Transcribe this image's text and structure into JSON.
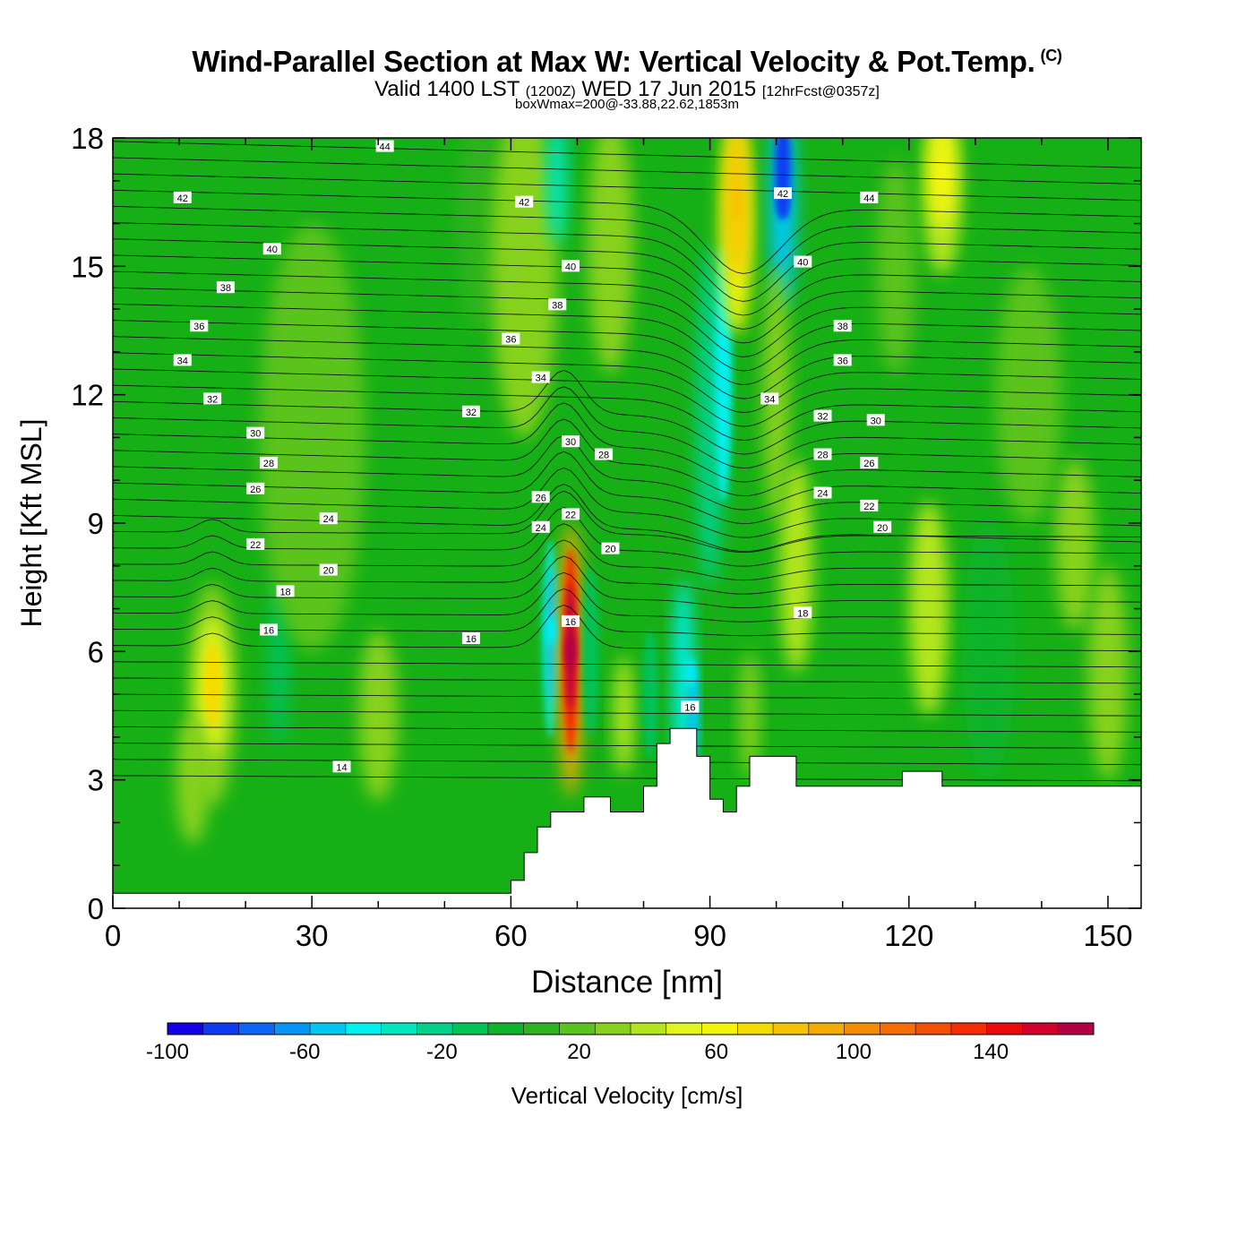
{
  "title": {
    "main": "Wind-Parallel Section at Max W: Vertical Velocity & Pot.Temp.",
    "copyright": "(C)",
    "valid_prefix": "Valid 1400 LST",
    "valid_utc": "(1200Z)",
    "valid_date": "WED 17 Jun 2015",
    "forecast": "[12hrFcst@0357z]",
    "box_info": "boxWmax=200@-33.88,22.62,1853m"
  },
  "colors": {
    "background_field": "#16b016",
    "terrain": "#ffffff",
    "contour": "#000000"
  },
  "chart_data": {
    "type": "heatmap",
    "xlabel": "Distance [nm]",
    "ylabel": "Height [Kft MSL]",
    "xlim": [
      0,
      155
    ],
    "ylim": [
      0,
      18
    ],
    "x_ticks": [
      0,
      30,
      60,
      90,
      120,
      150
    ],
    "y_ticks": [
      0,
      3,
      6,
      9,
      12,
      15,
      18
    ],
    "x_minor_step": 10,
    "y_minor_step": 1,
    "terrain_profile": [
      [
        0,
        0.35
      ],
      [
        60,
        0.35
      ],
      [
        60,
        0.65
      ],
      [
        62,
        0.65
      ],
      [
        62,
        1.3
      ],
      [
        64,
        1.3
      ],
      [
        64,
        1.9
      ],
      [
        66,
        1.9
      ],
      [
        66,
        2.25
      ],
      [
        71,
        2.25
      ],
      [
        71,
        2.6
      ],
      [
        75,
        2.6
      ],
      [
        75,
        2.25
      ],
      [
        80,
        2.25
      ],
      [
        80,
        2.85
      ],
      [
        82,
        2.85
      ],
      [
        82,
        3.85
      ],
      [
        84,
        3.85
      ],
      [
        84,
        4.2
      ],
      [
        88,
        4.2
      ],
      [
        88,
        3.55
      ],
      [
        90,
        3.55
      ],
      [
        90,
        2.55
      ],
      [
        92,
        2.55
      ],
      [
        92,
        2.25
      ],
      [
        94,
        2.25
      ],
      [
        94,
        2.85
      ],
      [
        96,
        2.85
      ],
      [
        96,
        3.55
      ],
      [
        103,
        3.55
      ],
      [
        103,
        2.85
      ],
      [
        119,
        2.85
      ],
      [
        119,
        3.2
      ],
      [
        125,
        3.2
      ],
      [
        125,
        2.85
      ],
      [
        155,
        2.85
      ]
    ],
    "colorbar": {
      "label": "Vertical Velocity [cm/s]",
      "levels": [
        -100,
        170
      ],
      "step": 10,
      "tick_labels": [
        -100,
        -60,
        -20,
        20,
        60,
        100,
        140
      ],
      "colors": [
        "#1400e6",
        "#0f3cf0",
        "#0a64f5",
        "#0596f5",
        "#00c8f5",
        "#00f0f0",
        "#00e6be",
        "#00d28c",
        "#00c35a",
        "#10b42c",
        "#2db41e",
        "#5ac31e",
        "#87d21e",
        "#b4e61e",
        "#e1f51e",
        "#f5f50a",
        "#f5dc00",
        "#f5c300",
        "#f5aa00",
        "#f58c00",
        "#f56e00",
        "#f55000",
        "#f52d00",
        "#eb0a0a",
        "#d2002d",
        "#b40046"
      ]
    },
    "w_features": [
      {
        "name": "updraft-left",
        "x": 15,
        "y": 5.2,
        "value": 60
      },
      {
        "name": "updraft-core",
        "x": 69,
        "y": 6.0,
        "value": 150
      },
      {
        "name": "downdraft-core",
        "x": 66,
        "y": 6.5,
        "value": -50
      },
      {
        "name": "downdraft-mid",
        "x": 87,
        "y": 5.5,
        "value": -50
      },
      {
        "name": "updraft-upper",
        "x": 94,
        "y": 16.5,
        "value": 70
      },
      {
        "name": "downdraft-upper",
        "x": 101,
        "y": 16.5,
        "value": -90
      },
      {
        "name": "updraft-right",
        "x": 125,
        "y": 17.0,
        "value": 50
      }
    ],
    "theta_labels": [
      {
        "text": "44",
        "x": 41,
        "y": 17.8
      },
      {
        "text": "42",
        "x": 10.5,
        "y": 16.6
      },
      {
        "text": "42",
        "x": 62,
        "y": 16.5
      },
      {
        "text": "42",
        "x": 101,
        "y": 16.7
      },
      {
        "text": "44",
        "x": 114,
        "y": 16.6
      },
      {
        "text": "40",
        "x": 24,
        "y": 15.4
      },
      {
        "text": "40",
        "x": 69,
        "y": 15.0
      },
      {
        "text": "40",
        "x": 104,
        "y": 15.1
      },
      {
        "text": "38",
        "x": 17,
        "y": 14.5
      },
      {
        "text": "38",
        "x": 67,
        "y": 14.1
      },
      {
        "text": "38",
        "x": 110,
        "y": 13.6
      },
      {
        "text": "36",
        "x": 13,
        "y": 13.6
      },
      {
        "text": "36",
        "x": 60,
        "y": 13.3
      },
      {
        "text": "36",
        "x": 110,
        "y": 12.8
      },
      {
        "text": "34",
        "x": 10.5,
        "y": 12.8
      },
      {
        "text": "34",
        "x": 64.5,
        "y": 12.4
      },
      {
        "text": "34",
        "x": 99,
        "y": 11.9
      },
      {
        "text": "32",
        "x": 15,
        "y": 11.9
      },
      {
        "text": "32",
        "x": 54,
        "y": 11.6
      },
      {
        "text": "32",
        "x": 107,
        "y": 11.5
      },
      {
        "text": "30",
        "x": 21.5,
        "y": 11.1
      },
      {
        "text": "30",
        "x": 69,
        "y": 10.9
      },
      {
        "text": "30",
        "x": 115,
        "y": 11.4
      },
      {
        "text": "28",
        "x": 23.5,
        "y": 10.4
      },
      {
        "text": "28",
        "x": 74,
        "y": 10.6
      },
      {
        "text": "28",
        "x": 107,
        "y": 10.6
      },
      {
        "text": "26",
        "x": 21.5,
        "y": 9.8
      },
      {
        "text": "26",
        "x": 64.5,
        "y": 9.6
      },
      {
        "text": "26",
        "x": 114,
        "y": 10.4
      },
      {
        "text": "24",
        "x": 32.5,
        "y": 9.1
      },
      {
        "text": "24",
        "x": 64.5,
        "y": 8.9
      },
      {
        "text": "24",
        "x": 107,
        "y": 9.7
      },
      {
        "text": "22",
        "x": 21.5,
        "y": 8.5
      },
      {
        "text": "22",
        "x": 69,
        "y": 9.2
      },
      {
        "text": "22",
        "x": 114,
        "y": 9.4
      },
      {
        "text": "20",
        "x": 32.5,
        "y": 7.9
      },
      {
        "text": "20",
        "x": 75,
        "y": 8.4
      },
      {
        "text": "20",
        "x": 116,
        "y": 8.9
      },
      {
        "text": "18",
        "x": 26,
        "y": 7.4
      },
      {
        "text": "18",
        "x": 104,
        "y": 6.9
      },
      {
        "text": "16",
        "x": 23.5,
        "y": 6.5
      },
      {
        "text": "16",
        "x": 54,
        "y": 6.3
      },
      {
        "text": "16",
        "x": 69,
        "y": 6.7
      },
      {
        "text": "16",
        "x": 87,
        "y": 4.7
      },
      {
        "text": "14",
        "x": 34.5,
        "y": 3.3
      }
    ]
  }
}
